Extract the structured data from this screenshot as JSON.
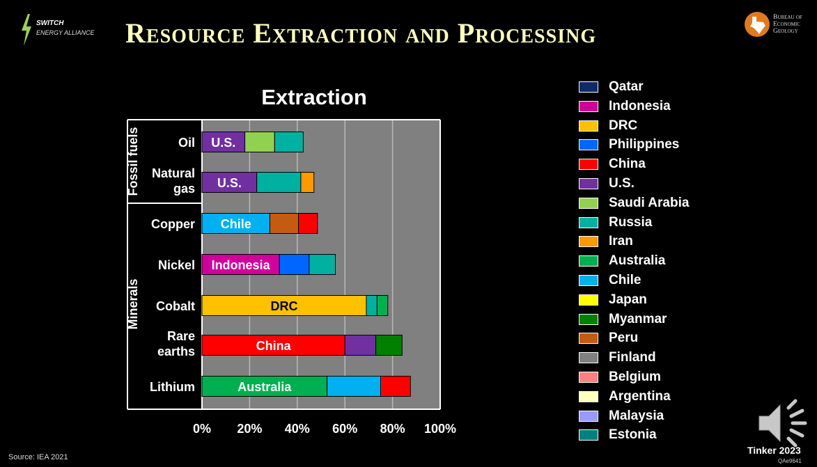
{
  "header": {
    "title": "Resource Extraction and Processing",
    "org_left_line1": "SWITCH",
    "org_left_line2": "ENERGY ALLIANCE",
    "org_right_line1": "Bureau of",
    "org_right_line2": "Economic",
    "org_right_line3": "Geology"
  },
  "footer": {
    "source": "Source: IEA 2021",
    "credit": "Tinker 2023",
    "code": "QAe9641"
  },
  "colors": {
    "Qatar": "#0d2a6b",
    "Indonesia": "#d1009b",
    "DRC": "#ffc000",
    "Philippines": "#0066ff",
    "China": "#ff0000",
    "U.S.": "#7030a0",
    "Saudi Arabia": "#92d050",
    "Russia": "#00b0a0",
    "Iran": "#ff9900",
    "Australia": "#00b050",
    "Chile": "#00b0f0",
    "Japan": "#ffff00",
    "Myanmar": "#008000",
    "Peru": "#c55a11",
    "Finland": "#808080",
    "Belgium": "#ff8080",
    "Argentina": "#ffffc0",
    "Malaysia": "#9999ff",
    "Estonia": "#008080"
  },
  "legend": [
    "Qatar",
    "Indonesia",
    "DRC",
    "Philippines",
    "China",
    "U.S.",
    "Saudi Arabia",
    "Russia",
    "Iran",
    "Australia",
    "Chile",
    "Japan",
    "Myanmar",
    "Peru",
    "Finland",
    "Belgium",
    "Argentina",
    "Malaysia",
    "Estonia"
  ],
  "chart_data": {
    "type": "bar",
    "orientation": "horizontal",
    "stacked": true,
    "title": "Extraction",
    "xlabel": "",
    "ylabel": "",
    "xlim": [
      0,
      100
    ],
    "xticks": [
      "0%",
      "20%",
      "40%",
      "60%",
      "80%",
      "100%"
    ],
    "grid": true,
    "groups": [
      {
        "label": "Fossil fuels",
        "categories": [
          "Oil",
          "Natural gas"
        ]
      },
      {
        "label": "Minerals",
        "categories": [
          "Copper",
          "Nickel",
          "Cobalt",
          "Rare earths",
          "Lithium"
        ]
      }
    ],
    "rows": [
      {
        "category": "Oil",
        "label_lines": [
          "Oil"
        ],
        "segments": [
          {
            "country": "U.S.",
            "value": 18,
            "label": "U.S."
          },
          {
            "country": "Saudi Arabia",
            "value": 12.5
          },
          {
            "country": "Russia",
            "value": 12
          }
        ]
      },
      {
        "category": "Natural gas",
        "label_lines": [
          "Natural",
          "gas"
        ],
        "segments": [
          {
            "country": "U.S.",
            "value": 23,
            "label": "U.S."
          },
          {
            "country": "Russia",
            "value": 18.5
          },
          {
            "country": "Iran",
            "value": 5.5
          }
        ]
      },
      {
        "category": "Copper",
        "label_lines": [
          "Copper"
        ],
        "segments": [
          {
            "country": "Chile",
            "value": 28.5,
            "label": "Chile"
          },
          {
            "country": "Peru",
            "value": 12
          },
          {
            "country": "China",
            "value": 8
          }
        ]
      },
      {
        "category": "Nickel",
        "label_lines": [
          "Nickel"
        ],
        "segments": [
          {
            "country": "Indonesia",
            "value": 32.5,
            "label": "Indonesia"
          },
          {
            "country": "Philippines",
            "value": 12.5
          },
          {
            "country": "Russia",
            "value": 11
          }
        ]
      },
      {
        "category": "Cobalt",
        "label_lines": [
          "Cobalt"
        ],
        "segments": [
          {
            "country": "DRC",
            "value": 69,
            "label": "DRC"
          },
          {
            "country": "Russia",
            "value": 4.5
          },
          {
            "country": "Australia",
            "value": 4.5
          }
        ]
      },
      {
        "category": "Rare earths",
        "label_lines": [
          "Rare",
          "earths"
        ],
        "segments": [
          {
            "country": "China",
            "value": 60,
            "label": "China"
          },
          {
            "country": "U.S.",
            "value": 13
          },
          {
            "country": "Myanmar",
            "value": 11
          }
        ]
      },
      {
        "category": "Lithium",
        "label_lines": [
          "Lithium"
        ],
        "segments": [
          {
            "country": "Australia",
            "value": 52.5,
            "label": "Australia"
          },
          {
            "country": "Chile",
            "value": 22.5
          },
          {
            "country": "China",
            "value": 12.5
          }
        ]
      }
    ]
  }
}
